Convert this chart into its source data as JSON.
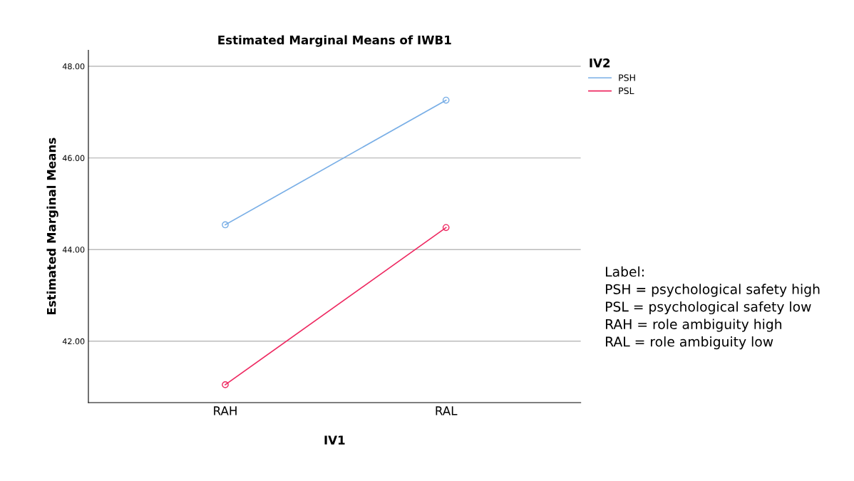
{
  "chart_data": {
    "type": "line",
    "title": "Estimated Marginal Means of IWB1",
    "xlabel": "IV1",
    "ylabel": "Estimated Marginal Means",
    "legend_title": "IV2",
    "categories": [
      "RAH",
      "RAL"
    ],
    "series": [
      {
        "name": "PSH",
        "color": "#78aee6",
        "values": [
          44.54,
          47.26
        ]
      },
      {
        "name": "PSL",
        "color": "#ee2a62",
        "values": [
          41.05,
          44.48
        ]
      }
    ],
    "ylim": [
      40.66,
      48.35
    ],
    "yticks": [
      {
        "value": 42,
        "label": "42.00"
      },
      {
        "value": 44,
        "label": "44.00"
      },
      {
        "value": 46,
        "label": "46.00"
      },
      {
        "value": 48,
        "label": "48.00"
      }
    ],
    "grid": "y",
    "legend": "top right",
    "marker": "circle",
    "line_style": "solid",
    "annotations": [
      "Label:\nPSH = psychological safety high\nPSL = psychological safety low\nRAH = role ambiguity high\nRAL = role ambiguity low"
    ]
  }
}
